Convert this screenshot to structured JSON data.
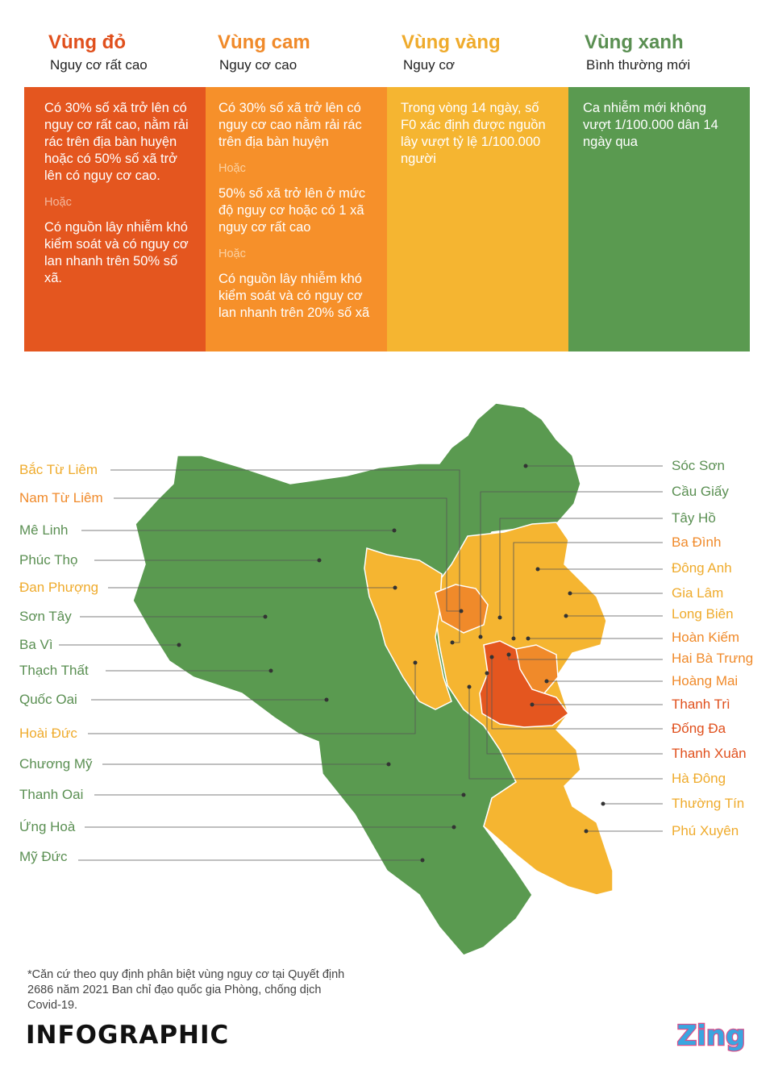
{
  "legend": {
    "red": {
      "title": "Vùng đỏ",
      "subtitle": "Nguy cơ rất cao",
      "color": "#e4561f",
      "line1": "Có 30% số xã trở lên có nguy cơ rất cao, nằm rải rác trên địa bàn huyện hoặc có 50% số xã trở lên có nguy cơ cao.",
      "or": "Hoặc",
      "line2": "Có nguồn lây nhiễm khó kiểm soát và có nguy cơ lan nhanh trên 50% số xã."
    },
    "orange": {
      "title": "Vùng cam",
      "subtitle": "Nguy cơ cao",
      "color": "#f6902a",
      "line1": "Có 30% số xã trở lên có nguy cơ cao nằm rải rác trên địa bàn huyện",
      "or1": "Hoặc",
      "line2": "50% số xã trở lên ở mức độ nguy cơ hoặc có 1 xã nguy cơ rất cao",
      "or2": "Hoặc",
      "line3": "Có nguồn lây nhiễm khó kiểm soát và có nguy cơ lan nhanh trên 20% số xã"
    },
    "yellow": {
      "title": "Vùng vàng",
      "subtitle": "Nguy cơ",
      "color": "#f5b531",
      "line1": "Trong vòng 14 ngày, số F0 xác định được nguồn lây vượt tỷ lệ 1/100.000 người"
    },
    "green": {
      "title": "Vùng xanh",
      "subtitle": "Bình thường mới",
      "color": "#5a9a50",
      "line1": "Ca nhiễm mới không vượt 1/100.000 dân 14 ngày qua"
    }
  },
  "districts_left": [
    "Bắc Từ Liêm",
    "Nam Từ Liêm",
    "Mê Linh",
    "Phúc Thọ",
    "Đan Phượng",
    "Sơn Tây",
    "Ba Vì",
    "Thạch Thất",
    "Quốc Oai",
    "Hoài Đức",
    "Chương Mỹ",
    "Thanh Oai",
    "Ứng Hoà",
    "Mỹ Đức"
  ],
  "districts_right": [
    "Sóc Sơn",
    "Cầu Giấy",
    "Tây Hồ",
    "Ba Đình",
    "Đông Anh",
    "Gia Lâm",
    "Long Biên",
    "Hoàn Kiếm",
    "Hai Bà Trưng",
    "Hoàng Mai",
    "Thanh Trì",
    "Đống Đa",
    "Thanh Xuân",
    "Hà Đông",
    "Thường Tín",
    "Phú Xuyên"
  ],
  "footer": {
    "note": "*Căn cứ theo quy định phân biệt vùng nguy cơ tại Quyết định 2686 năm 2021 Ban chỉ đạo quốc gia Phòng, chống dịch Covid-19.",
    "brand": "INFOGRAPHIC",
    "logo": "Zing"
  }
}
